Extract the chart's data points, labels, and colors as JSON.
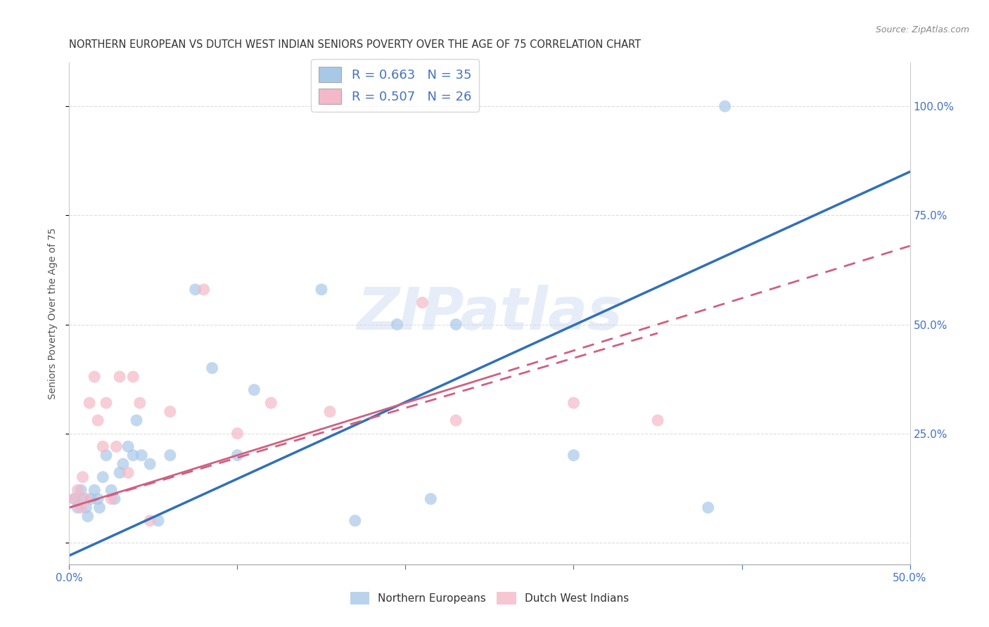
{
  "title": "NORTHERN EUROPEAN VS DUTCH WEST INDIAN SENIORS POVERTY OVER THE AGE OF 75 CORRELATION CHART",
  "source": "Source: ZipAtlas.com",
  "ylabel": "Seniors Poverty Over the Age of 75",
  "blue_r": 0.663,
  "blue_n": 35,
  "pink_r": 0.507,
  "pink_n": 26,
  "blue_color": "#a8c8e8",
  "pink_color": "#f4b8c8",
  "blue_line_color": "#3070b8",
  "pink_line_color": "#d06080",
  "watermark_text": "ZIPatlas",
  "xlim": [
    0.0,
    0.5
  ],
  "ylim": [
    -0.05,
    1.1
  ],
  "xticks": [
    0.0,
    0.1,
    0.2,
    0.3,
    0.4,
    0.5
  ],
  "yticks": [
    0.0,
    0.25,
    0.5,
    0.75,
    1.0
  ],
  "grid_color": "#dddddd",
  "background_color": "#ffffff",
  "blue_x": [
    0.003,
    0.005,
    0.007,
    0.008,
    0.01,
    0.011,
    0.013,
    0.015,
    0.017,
    0.018,
    0.02,
    0.022,
    0.025,
    0.027,
    0.03,
    0.032,
    0.035,
    0.038,
    0.04,
    0.043,
    0.048,
    0.053,
    0.06,
    0.075,
    0.085,
    0.1,
    0.11,
    0.15,
    0.17,
    0.195,
    0.215,
    0.23,
    0.3,
    0.38,
    0.39
  ],
  "blue_y": [
    0.1,
    0.08,
    0.12,
    0.1,
    0.08,
    0.06,
    0.1,
    0.12,
    0.1,
    0.08,
    0.15,
    0.2,
    0.12,
    0.1,
    0.16,
    0.18,
    0.22,
    0.2,
    0.28,
    0.2,
    0.18,
    0.05,
    0.2,
    0.58,
    0.4,
    0.2,
    0.35,
    0.58,
    0.05,
    0.5,
    0.1,
    0.5,
    0.2,
    0.08,
    1.0
  ],
  "pink_x": [
    0.003,
    0.005,
    0.007,
    0.008,
    0.01,
    0.012,
    0.015,
    0.017,
    0.02,
    0.022,
    0.025,
    0.028,
    0.03,
    0.035,
    0.038,
    0.042,
    0.048,
    0.06,
    0.08,
    0.1,
    0.12,
    0.155,
    0.21,
    0.23,
    0.3,
    0.35
  ],
  "pink_y": [
    0.1,
    0.12,
    0.08,
    0.15,
    0.1,
    0.32,
    0.38,
    0.28,
    0.22,
    0.32,
    0.1,
    0.22,
    0.38,
    0.16,
    0.38,
    0.32,
    0.05,
    0.3,
    0.58,
    0.25,
    0.32,
    0.3,
    0.55,
    0.28,
    0.32,
    0.28
  ],
  "blue_line_x0": 0.0,
  "blue_line_y0": -0.03,
  "blue_line_x1": 0.5,
  "blue_line_y1": 0.85,
  "pink_line_x0": 0.0,
  "pink_line_y0": 0.08,
  "pink_line_x1": 0.35,
  "pink_line_y1": 0.48
}
